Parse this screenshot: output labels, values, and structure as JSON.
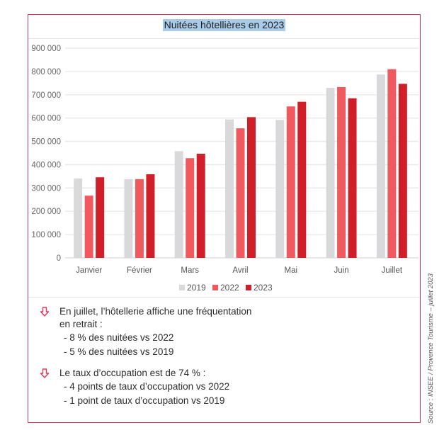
{
  "chart_data": {
    "type": "bar",
    "title": "Nuitées hôtellières en 2023",
    "xlabel": "",
    "ylabel": "",
    "categories": [
      "Janvier",
      "Février",
      "Mars",
      "Avril",
      "Mai",
      "Juin",
      "Juillet"
    ],
    "series": [
      {
        "name": "2019",
        "color": "#d9d9db",
        "values": [
          341000,
          338000,
          458000,
          594000,
          592000,
          730000,
          787000
        ]
      },
      {
        "name": "2022",
        "color": "#f05a5e",
        "values": [
          267000,
          338000,
          428000,
          556000,
          650000,
          733000,
          810000
        ]
      },
      {
        "name": "2023",
        "color": "#d11f2a",
        "values": [
          346000,
          359000,
          447000,
          604000,
          670000,
          685000,
          747000
        ]
      }
    ],
    "ylim": [
      0,
      900000
    ],
    "yticks": [
      0,
      100000,
      200000,
      300000,
      400000,
      500000,
      600000,
      700000,
      800000,
      900000
    ],
    "ytick_labels": [
      "0",
      "100 000",
      "200 000",
      "300 000",
      "400 000",
      "500 000",
      "600 000",
      "700 000",
      "800 000",
      "900 000"
    ],
    "grid": true,
    "legend_position": "bottom"
  },
  "notes": [
    {
      "icon": "down-arrow-icon",
      "lines": [
        "En juillet, l’hôtellerie affiche une fréquentation",
        "en retrait :"
      ],
      "sub": [
        "- 8 % des nuitées vs 2022",
        "- 5 % des nuitées vs 2019"
      ]
    },
    {
      "icon": "down-arrow-icon",
      "lines": [
        "Le taux d’occupation est de 74 % :"
      ],
      "sub": [
        "- 4 points de taux d’occupation vs 2022",
        "- 1 point de taux d’occupation vs 2019"
      ]
    }
  ],
  "source": "Source : INSEE / Provence Tourisme – juillet 2023",
  "colors": {
    "frame": "#c73a5c",
    "arrow": "#e0385a"
  }
}
